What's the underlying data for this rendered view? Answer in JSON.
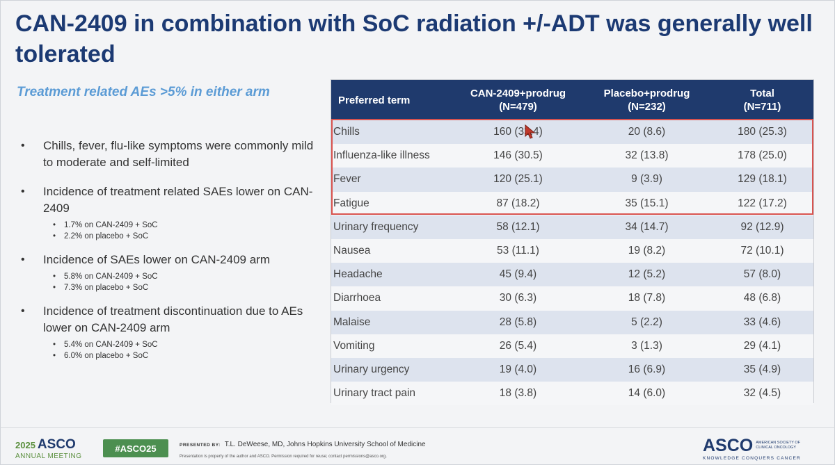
{
  "title": "CAN-2409 in combination with SoC radiation +/-ADT was generally well tolerated",
  "subtitle": "Treatment related AEs >5% in either arm",
  "bullets": [
    {
      "text": "Chills, fever, flu-like symptoms were commonly mild to moderate and self-limited",
      "subs": []
    },
    {
      "text": "Incidence of treatment related SAEs lower on CAN-2409",
      "subs": [
        "1.7% on CAN-2409 + SoC",
        "2.2% on placebo + SoC"
      ]
    },
    {
      "text": "Incidence of SAEs lower on CAN-2409 arm",
      "subs": [
        "5.8% on CAN-2409 + SoC",
        "7.3% on placebo + SoC"
      ]
    },
    {
      "text": "Incidence of treatment discontinuation due to AEs lower on CAN-2409 arm",
      "subs": [
        "5.4% on CAN-2409 + SoC",
        "6.0% on placebo + SoC"
      ]
    }
  ],
  "table": {
    "headers": [
      {
        "line1": "Preferred term",
        "line2": ""
      },
      {
        "line1": "CAN-2409+prodrug",
        "line2": "(N=479)"
      },
      {
        "line1": "Placebo+prodrug",
        "line2": "(N=232)"
      },
      {
        "line1": "Total",
        "line2": "(N=711)"
      }
    ],
    "rows": [
      [
        "Chills",
        "160 (33.4)",
        "20 (8.6)",
        "180 (25.3)"
      ],
      [
        "Influenza-like illness",
        "146 (30.5)",
        "32 (13.8)",
        "178 (25.0)"
      ],
      [
        "Fever",
        "120 (25.1)",
        "9 (3.9)",
        "129 (18.1)"
      ],
      [
        "Fatigue",
        "87 (18.2)",
        "35 (15.1)",
        "122 (17.2)"
      ],
      [
        "Urinary frequency",
        "58 (12.1)",
        "34 (14.7)",
        "92 (12.9)"
      ],
      [
        "Nausea",
        "53 (11.1)",
        "19 (8.2)",
        "72 (10.1)"
      ],
      [
        "Headache",
        "45 (9.4)",
        "12 (5.2)",
        "57 (8.0)"
      ],
      [
        "Diarrhoea",
        "30 (6.3)",
        "18 (7.8)",
        "48 (6.8)"
      ],
      [
        "Malaise",
        "28 (5.8)",
        "5 (2.2)",
        "33 (4.6)"
      ],
      [
        "Vomiting",
        "26 (5.4)",
        "3 (1.3)",
        "29 (4.1)"
      ],
      [
        "Urinary urgency",
        "19 (4.0)",
        "16 (6.9)",
        "35 (4.9)"
      ],
      [
        "Urinary tract pain",
        "18 (3.8)",
        "14 (6.0)",
        "32 (4.5)"
      ]
    ]
  },
  "footer": {
    "year": "2025",
    "asco": "ASCO",
    "meeting": "ANNUAL MEETING",
    "hashtag": "#ASCO25",
    "presented_by_label": "PRESENTED BY:",
    "presenter": "T.L. DeWeese, MD, Johns Hopkins University School of Medicine",
    "permission": "Presentation is property of the author and ASCO. Permission required for reuse; contact permissions@asco.org.",
    "asco_logo": "ASCO",
    "society": "AMERICAN SOCIETY OF CLINICAL ONCOLOGY",
    "tagline": "KNOWLEDGE CONQUERS CANCER"
  },
  "colors": {
    "title": "#1c3a73",
    "subtitle": "#5b9bd5",
    "table_header": "#1f3a6d",
    "highlight_box": "#d9534f",
    "hashtag_bg": "#4c8f50"
  },
  "icons": {
    "cursor": "pointer-cursor-icon"
  }
}
